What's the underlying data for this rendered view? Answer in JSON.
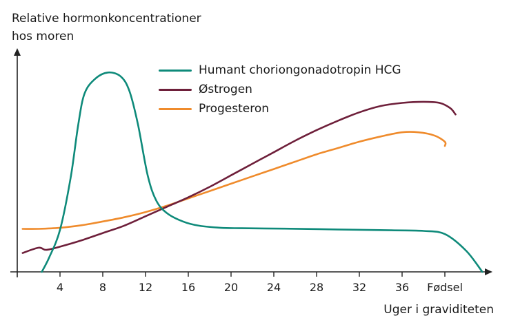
{
  "chart_data": {
    "type": "line",
    "ylabel_line1": "Relative hormonkoncentrationer",
    "ylabel_line2": "hos moren",
    "xlabel": "Uger i graviditeten",
    "x_ticks": [
      4,
      8,
      12,
      16,
      20,
      24,
      28,
      32,
      36
    ],
    "x_end_label": "Fødsel",
    "xlim": [
      0,
      44
    ],
    "ylim": [
      0,
      100
    ],
    "legend_position": "top-center",
    "grid": false,
    "series": [
      {
        "name": "Humant choriongonadotropin HCG",
        "color": "#0e8a7a",
        "points": [
          [
            2.3,
            0
          ],
          [
            3,
            7
          ],
          [
            4,
            20
          ],
          [
            5,
            45
          ],
          [
            5.7,
            70
          ],
          [
            6.3,
            85
          ],
          [
            7.3,
            92
          ],
          [
            8.5,
            95
          ],
          [
            9.7,
            93
          ],
          [
            10.5,
            86
          ],
          [
            11.3,
            70
          ],
          [
            12.2,
            46
          ],
          [
            13,
            34
          ],
          [
            14,
            28
          ],
          [
            15.5,
            24
          ],
          [
            17,
            22
          ],
          [
            19,
            21
          ],
          [
            21,
            20.8
          ],
          [
            25,
            20.6
          ],
          [
            30,
            20.2
          ],
          [
            35,
            19.8
          ],
          [
            38,
            19.5
          ],
          [
            40,
            18
          ],
          [
            42,
            10
          ],
          [
            43.5,
            0
          ]
        ]
      },
      {
        "name": "Østrogen",
        "color": "#6e1f3a",
        "points": [
          [
            0.5,
            9
          ],
          [
            2,
            11.5
          ],
          [
            2.7,
            10.5
          ],
          [
            4,
            12
          ],
          [
            6,
            15
          ],
          [
            8,
            18.5
          ],
          [
            10,
            22
          ],
          [
            12,
            26.5
          ],
          [
            14,
            31
          ],
          [
            16,
            35.5
          ],
          [
            18,
            40.5
          ],
          [
            20,
            46
          ],
          [
            22,
            51.5
          ],
          [
            24,
            57
          ],
          [
            26,
            62.5
          ],
          [
            28,
            67.5
          ],
          [
            30,
            72
          ],
          [
            32,
            76
          ],
          [
            34,
            79
          ],
          [
            36,
            80.5
          ],
          [
            38,
            81
          ],
          [
            39.5,
            80.5
          ],
          [
            40.5,
            78
          ],
          [
            41,
            75
          ]
        ]
      },
      {
        "name": "Progesteron",
        "color": "#ef8b2c",
        "points": [
          [
            0.5,
            20.5
          ],
          [
            2,
            20.5
          ],
          [
            4,
            21
          ],
          [
            6,
            22.2
          ],
          [
            8,
            24
          ],
          [
            10,
            26
          ],
          [
            12,
            28.5
          ],
          [
            14,
            31.5
          ],
          [
            16,
            35
          ],
          [
            18,
            38.5
          ],
          [
            20,
            42
          ],
          [
            22,
            45.5
          ],
          [
            24,
            49
          ],
          [
            26,
            52.5
          ],
          [
            28,
            56
          ],
          [
            30,
            59
          ],
          [
            32,
            62
          ],
          [
            34,
            64.5
          ],
          [
            36,
            66.5
          ],
          [
            37.5,
            66.5
          ],
          [
            39,
            65
          ],
          [
            40,
            62
          ],
          [
            40,
            60
          ]
        ]
      }
    ]
  }
}
